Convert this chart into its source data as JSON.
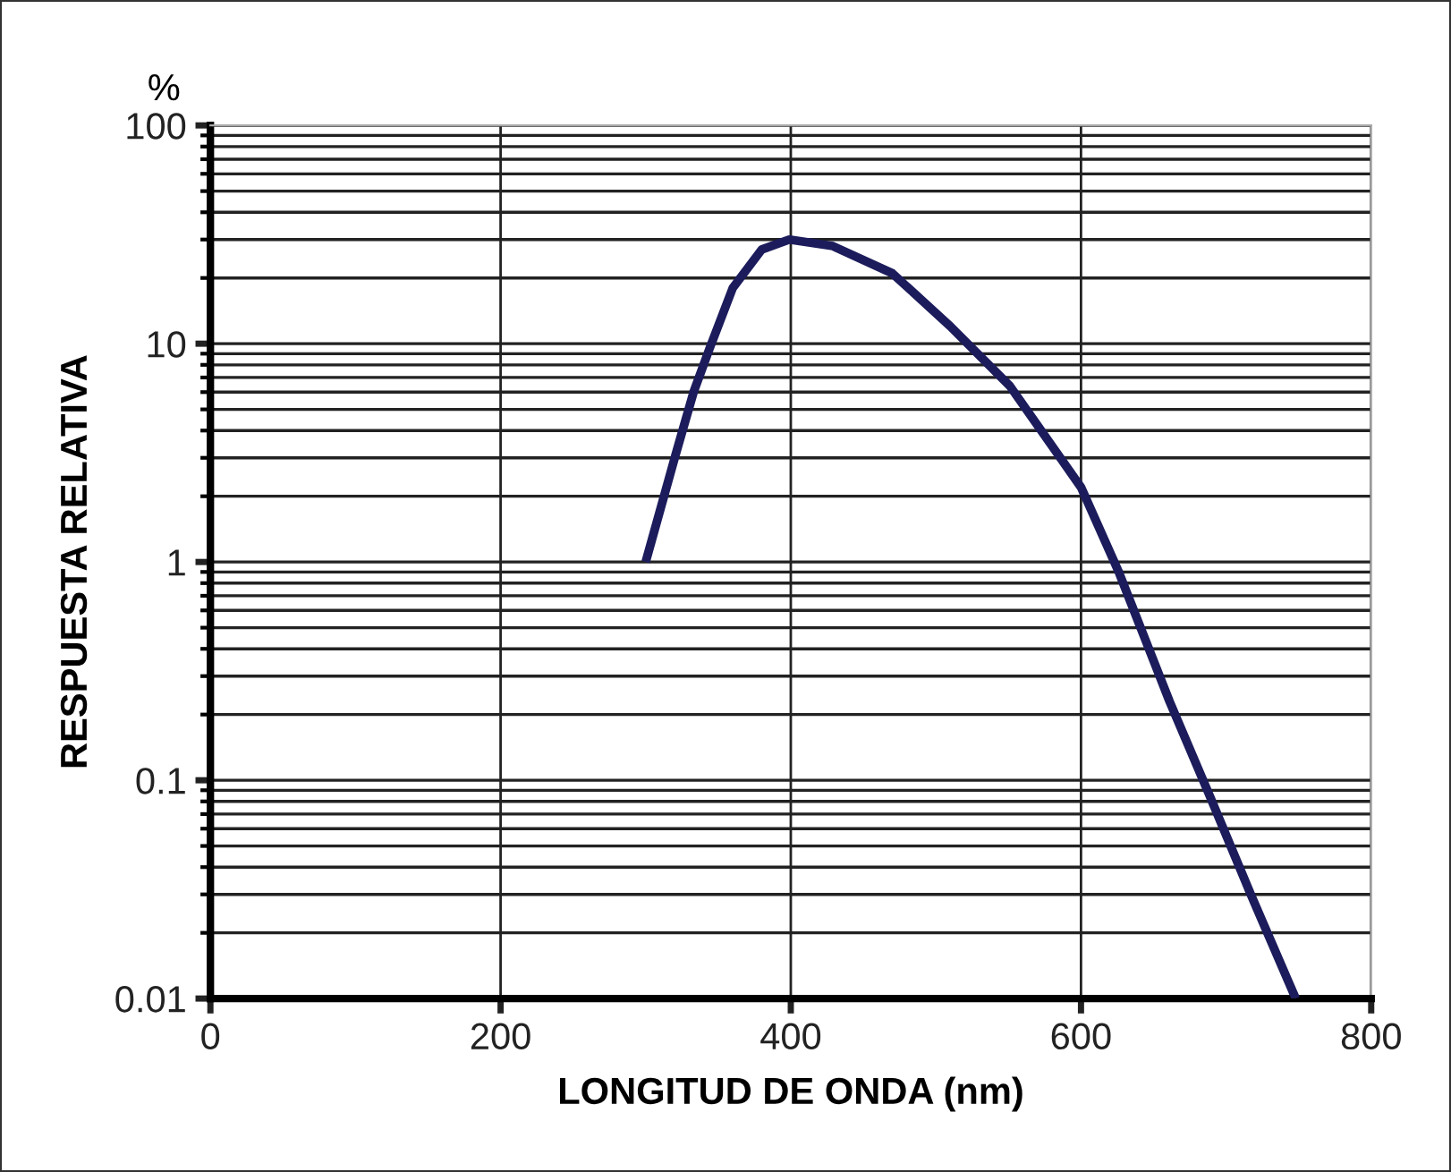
{
  "chart_data": {
    "type": "line",
    "xlabel": "LONGITUD DE ONDA (nm)",
    "ylabel": "RESPUESTA RELATIVA",
    "annotations": [
      "%"
    ],
    "x": [
      300,
      320,
      333,
      344,
      360,
      380,
      399,
      429,
      470,
      510,
      551,
      600,
      626,
      661,
      689,
      717,
      748
    ],
    "series": [
      {
        "color": "#1c1c5c",
        "values": [
          1,
          3.0,
          6,
          9.5,
          18,
          27,
          30,
          28,
          21,
          12,
          6.4,
          2.2,
          0.9,
          0.23,
          0.084,
          0.03,
          0.01
        ]
      }
    ],
    "log": "y",
    "xlim": [
      0,
      800
    ],
    "xticks": [
      0,
      200,
      400,
      600,
      800
    ],
    "ylim": [
      0.01,
      100
    ],
    "yticks": [
      {
        "value": 0.01,
        "label": "0.01"
      },
      {
        "value": 0.1,
        "label": "0.1"
      },
      {
        "value": 1,
        "label": "1"
      },
      {
        "value": 10,
        "label": "10"
      },
      {
        "value": 100,
        "label": "100"
      }
    ],
    "grid": true,
    "marker": "none",
    "line_style": "solid",
    "legend": false
  }
}
